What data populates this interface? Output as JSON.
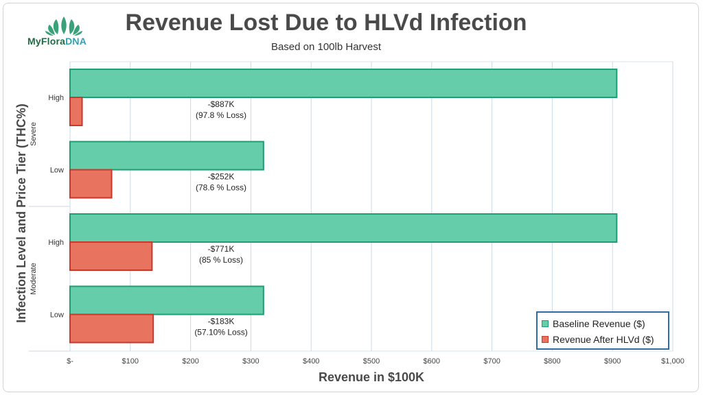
{
  "brand": {
    "name_part1": "MyFlora",
    "name_part2": "DNA"
  },
  "colors": {
    "baseline": "#66cdaa",
    "baseline_edge": "#1e9e73",
    "after": "#e8735f",
    "after_edge": "#c8392b",
    "grid": "#c9dbe6"
  },
  "chart_data": {
    "type": "bar",
    "orientation": "horizontal",
    "title": "Revenue Lost Due to HLVd Infection",
    "subtitle": "Based on 100lb Harvest",
    "xlabel": "Revenue in $100K",
    "ylabel": "Infection Level and Price Tier (THC%)",
    "xlim": [
      0,
      1000
    ],
    "xticks": [
      0,
      100,
      200,
      300,
      400,
      500,
      600,
      700,
      800,
      900,
      1000
    ],
    "xtick_labels": [
      "$-",
      "$100",
      "$200",
      "$300",
      "$400",
      "$500",
      "$600",
      "$700",
      "$800",
      "$900",
      "$1,000"
    ],
    "groups": [
      {
        "label": "Severe",
        "categories": [
          "High",
          "Low"
        ]
      },
      {
        "label": "Moderate",
        "categories": [
          "High",
          "Low"
        ]
      }
    ],
    "categories": [
      "Severe High",
      "Severe Low",
      "Moderate High",
      "Moderate Low"
    ],
    "series": [
      {
        "name": "Baseline Revenue ($)",
        "values": [
          907,
          321,
          907,
          321
        ]
      },
      {
        "name": "Revenue After HLVd ($)",
        "values": [
          20,
          69,
          136,
          138
        ]
      }
    ],
    "annotations": [
      {
        "line1": "-$887K",
        "line2": "(97.8 % Loss)"
      },
      {
        "line1": "-$252K",
        "line2": "(78.6 % Loss)"
      },
      {
        "line1": "-$771K",
        "line2": "(85 % Loss)"
      },
      {
        "line1": "-$183K",
        "line2": "(57.10% Loss)"
      }
    ],
    "grid": true,
    "legend_position": "bottom-right"
  }
}
